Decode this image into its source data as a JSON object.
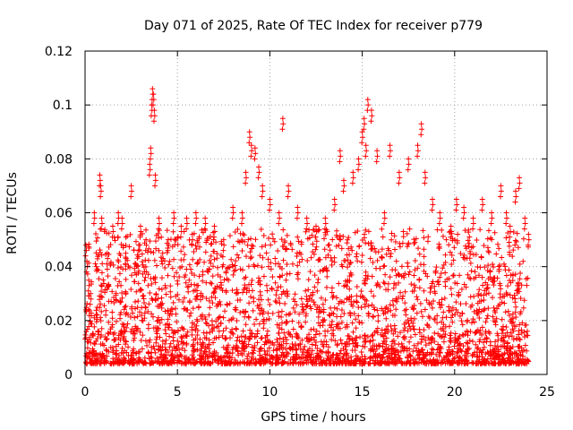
{
  "chart_data": {
    "type": "scatter",
    "title": "Day 071 of 2025, Rate Of TEC Index for receiver p779",
    "xlabel": "GPS time / hours",
    "ylabel": "ROTI / TECUs",
    "xlim": [
      0,
      25
    ],
    "ylim": [
      0,
      0.12
    ],
    "xticks": [
      0,
      5,
      10,
      15,
      20,
      25
    ],
    "yticks": [
      0,
      0.02,
      0.04,
      0.06,
      0.08,
      0.1,
      0.12
    ],
    "xtick_labels": [
      "0",
      "5",
      "10",
      "15",
      "20",
      "25"
    ],
    "ytick_labels": [
      "0",
      "0.02",
      "0.04",
      "0.06",
      "0.08",
      "0.1",
      "0.12"
    ],
    "grid": true,
    "marker": "plus",
    "marker_color": "#ff0000",
    "series": [
      {
        "x": [
          0.05,
          0.1,
          0.2,
          0.3,
          0.5,
          0.8,
          0.85,
          0.9,
          1.2,
          1.5,
          1.8,
          2.0,
          2.2,
          2.5,
          3.0,
          3.3,
          3.5,
          3.55,
          3.6,
          3.65,
          3.7,
          3.75,
          3.8,
          4.0,
          4.2,
          4.5,
          4.8,
          5.2,
          5.5,
          5.8,
          6.0,
          6.5,
          7.0,
          7.5,
          8.0,
          8.5,
          8.7,
          8.9,
          9.0,
          9.2,
          9.4,
          9.6,
          10.0,
          10.5,
          10.7,
          11.0,
          11.5,
          12.0,
          12.5,
          13.0,
          13.5,
          13.8,
          14.0,
          14.5,
          14.8,
          15.0,
          15.1,
          15.2,
          15.3,
          15.5,
          15.8,
          16.2,
          16.5,
          17.0,
          17.5,
          18.0,
          18.2,
          18.4,
          18.8,
          19.2,
          19.8,
          20.1,
          20.5,
          21.0,
          21.5,
          22.0,
          22.5,
          22.8,
          23.0,
          23.3,
          23.5,
          23.8,
          24.0
        ],
        "y": [
          0.048,
          0.042,
          0.035,
          0.03,
          0.06,
          0.074,
          0.07,
          0.058,
          0.045,
          0.055,
          0.06,
          0.058,
          0.045,
          0.07,
          0.055,
          0.05,
          0.078,
          0.084,
          0.1,
          0.106,
          0.104,
          0.098,
          0.074,
          0.058,
          0.045,
          0.05,
          0.06,
          0.055,
          0.058,
          0.052,
          0.06,
          0.058,
          0.055,
          0.05,
          0.062,
          0.06,
          0.075,
          0.09,
          0.085,
          0.084,
          0.077,
          0.07,
          0.065,
          0.06,
          0.095,
          0.07,
          0.062,
          0.058,
          0.055,
          0.058,
          0.065,
          0.083,
          0.072,
          0.075,
          0.08,
          0.09,
          0.095,
          0.085,
          0.102,
          0.098,
          0.083,
          0.06,
          0.085,
          0.075,
          0.08,
          0.085,
          0.093,
          0.075,
          0.065,
          0.06,
          0.055,
          0.065,
          0.062,
          0.058,
          0.065,
          0.06,
          0.07,
          0.06,
          0.055,
          0.068,
          0.073,
          0.058,
          0.052
        ]
      }
    ],
    "background_points_note_free": [
      0.005,
      0.03
    ]
  }
}
